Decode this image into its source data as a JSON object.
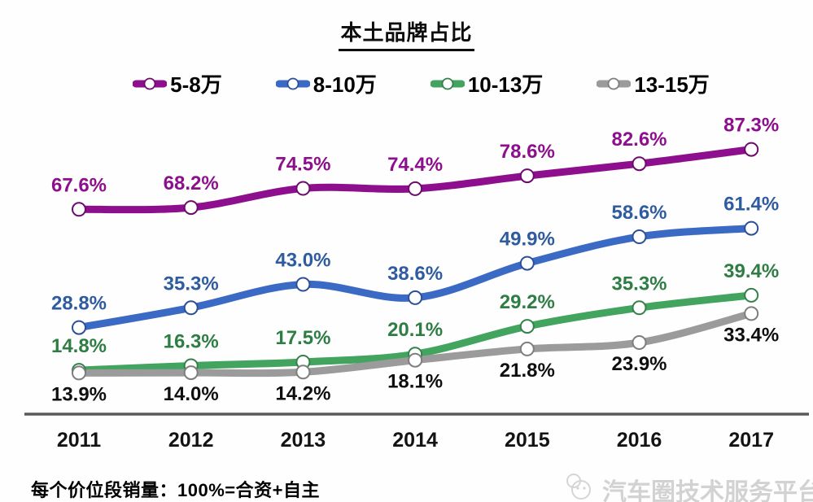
{
  "title": "本土品牌占比",
  "footnote": "每个价位段销量：100%=合资+自主",
  "watermark": "汽车圈技术服务平台",
  "axis_color": "#595959",
  "year_label_color": "#141414",
  "chart_data": {
    "type": "line",
    "title": "本土品牌占比",
    "x": [
      "2011",
      "2012",
      "2013",
      "2014",
      "2015",
      "2016",
      "2017"
    ],
    "xlabel": "",
    "ylabel": "",
    "ylim": [
      0,
      100
    ],
    "grid": false,
    "legend_position": "top",
    "series": [
      {
        "name": "5-8万",
        "color": "#8D0F8D",
        "label_color": "#8D0F8D",
        "marker_stroke": "#6d0b6d",
        "label_side": "above",
        "values": [
          67.6,
          68.2,
          74.5,
          74.4,
          78.6,
          82.6,
          87.3
        ]
      },
      {
        "name": "8-10万",
        "color": "#3B6AC4",
        "label_color": "#2F5B9F",
        "marker_stroke": "#2d4f96",
        "label_side": "above",
        "values": [
          28.8,
          35.3,
          43.0,
          38.6,
          49.9,
          58.6,
          61.4
        ]
      },
      {
        "name": "10-13万",
        "color": "#42A45F",
        "label_color": "#2E7E44",
        "marker_stroke": "#35804b",
        "label_side": "above",
        "values": [
          14.8,
          16.3,
          17.5,
          20.1,
          29.2,
          35.3,
          39.4
        ]
      },
      {
        "name": "13-15万",
        "color": "#9B9B9B",
        "label_color": "#0f0f0f",
        "marker_stroke": "#7e7e7e",
        "label_side": "below",
        "values": [
          13.9,
          14.0,
          14.2,
          18.1,
          21.8,
          23.9,
          33.4
        ]
      }
    ]
  }
}
